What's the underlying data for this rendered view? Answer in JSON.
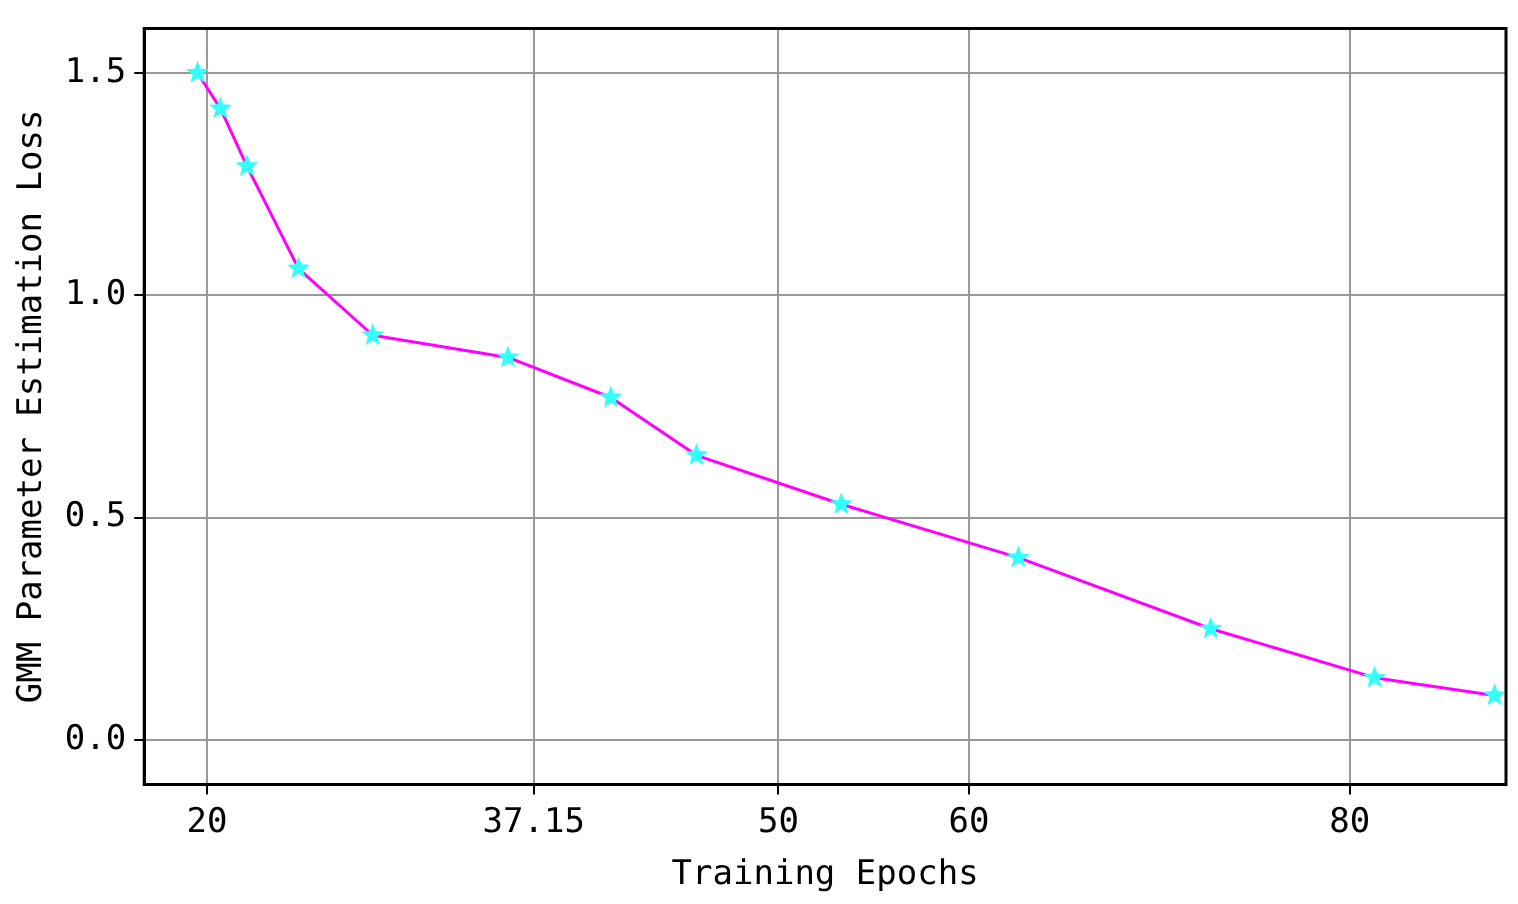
{
  "chart_data": {
    "type": "line",
    "xlabel": "Training Epochs",
    "ylabel": "GMM Parameter Estimation Loss",
    "x": [
      19.5,
      20.7,
      22.1,
      24.8,
      28.7,
      35.8,
      41.2,
      45.7,
      53.3,
      62.6,
      72.7,
      81.3,
      87.6
    ],
    "series": [
      {
        "color": "#ff00ff",
        "colors": [
          "#33ffff",
          "#33ffff",
          "#33ffff",
          "#33ffff",
          "#33ffff",
          "#33ffff",
          "#33ffff",
          "#33ffff",
          "#33ffff",
          "#33ffff",
          "#33ffff",
          "#33ffff",
          "#33ffff"
        ],
        "values": [
          1.5,
          1.42,
          1.29,
          1.06,
          0.91,
          0.86,
          0.77,
          0.64,
          0.53,
          0.41,
          0.25,
          0.14,
          0.1
        ]
      }
    ],
    "marker": "star",
    "line_style": "solid",
    "xlim": [
      16.7,
      88.2
    ],
    "xticks": [
      20,
      37.15,
      50,
      60,
      80
    ],
    "ylim": [
      -0.1,
      1.6
    ],
    "yticks": [
      {
        "value": 0,
        "label": "0.0"
      },
      {
        "value": 0.5,
        "label": "0.5"
      },
      {
        "value": 1,
        "label": "1.0"
      },
      {
        "value": 1.5,
        "label": "1.5"
      }
    ],
    "grid": true,
    "legend": false
  }
}
